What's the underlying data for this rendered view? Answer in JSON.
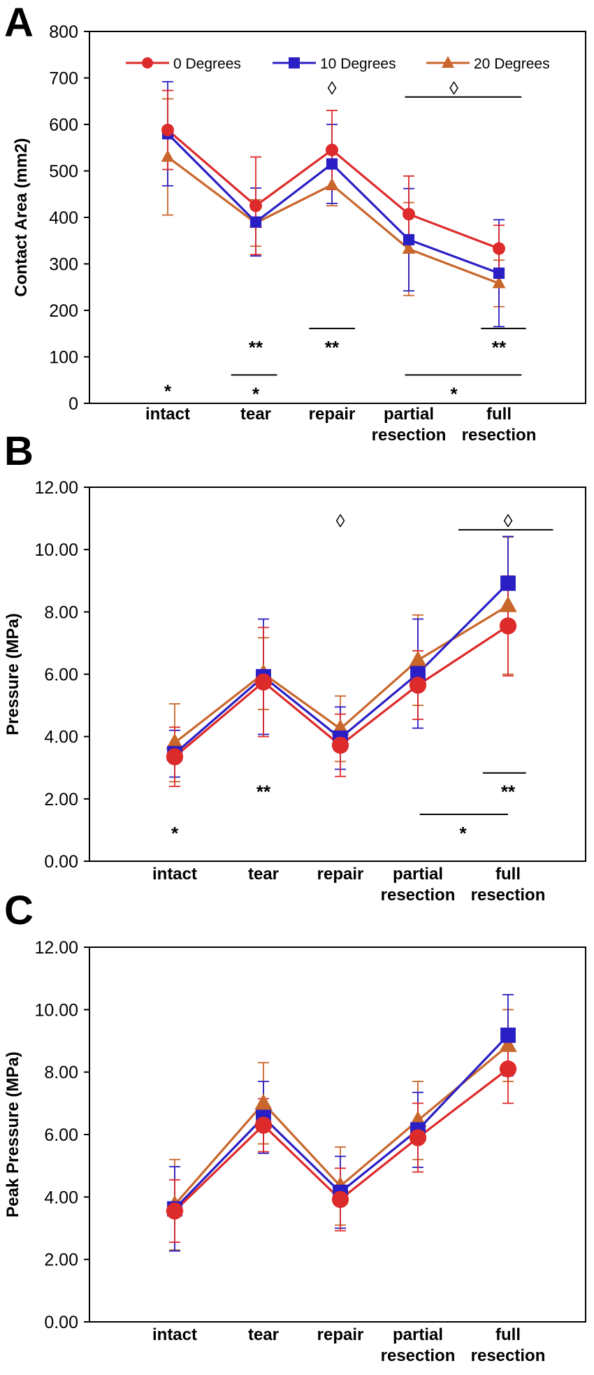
{
  "legend": {
    "items": [
      {
        "label": "0 Degrees",
        "color": "#dd2a2a",
        "marker": "circle"
      },
      {
        "label": "10 Degrees",
        "color": "#2a1fc4",
        "marker": "square"
      },
      {
        "label": "20 Degrees",
        "color": "#c9662b",
        "marker": "triangle"
      }
    ]
  },
  "chart_data": [
    {
      "panel": "A",
      "type": "line",
      "ylabel": "Contact Area (mm2)",
      "xlabel": "",
      "ylim": [
        0,
        800
      ],
      "yticks": [
        "0",
        "100",
        "200",
        "300",
        "400",
        "500",
        "600",
        "700",
        "800"
      ],
      "categories": [
        "intact",
        "tear",
        "repair",
        "partial resection",
        "full resection"
      ],
      "legend": "top",
      "grid": false,
      "series": [
        {
          "name": "0 Degrees",
          "values": [
            588,
            425,
            545,
            407,
            333
          ],
          "errors": [
            85,
            105,
            85,
            82,
            50
          ]
        },
        {
          "name": "10 Degrees",
          "values": [
            580,
            390,
            515,
            352,
            280
          ],
          "errors": [
            112,
            73,
            85,
            110,
            115
          ]
        },
        {
          "name": "20 Degrees",
          "values": [
            530,
            388,
            470,
            332,
            258
          ],
          "errors": [
            125,
            50,
            45,
            100,
            50
          ]
        }
      ],
      "annotations": [
        {
          "text": "*",
          "x": 0,
          "y": 28
        },
        {
          "text": "**",
          "x": 1,
          "y": 122
        },
        {
          "text": "*",
          "x": 1,
          "y": 22,
          "bar_from": 0.72,
          "bar_to": 1.28
        },
        {
          "text": "**",
          "x": 2,
          "y": 122,
          "bar_from": 1.7,
          "bar_to": 2.3
        },
        {
          "text": "◊",
          "x": 2,
          "y": 680
        },
        {
          "text": "◊",
          "x": 3.5,
          "y": 680,
          "bar_from": 2.95,
          "bar_to": 4.25
        },
        {
          "text": "**",
          "x": 4,
          "y": 122,
          "bar_from": 3.8,
          "bar_to": 4.3
        },
        {
          "text": "*",
          "x": 3.5,
          "y": 22,
          "bar_from": 2.95,
          "bar_to": 4.25
        }
      ]
    },
    {
      "panel": "B",
      "type": "line",
      "ylabel": "Pressure (MPa)",
      "xlabel": "",
      "ylim": [
        0,
        12
      ],
      "yticks": [
        "0.00",
        "2.00",
        "4.00",
        "6.00",
        "8.00",
        "10.00",
        "12.00"
      ],
      "categories": [
        "intact",
        "tear",
        "repair",
        "partial resection",
        "full resection"
      ],
      "grid": false,
      "series": [
        {
          "name": "0 Degrees",
          "values": [
            3.35,
            5.75,
            3.72,
            5.65,
            7.55
          ],
          "errors": [
            0.95,
            1.75,
            1.0,
            1.1,
            1.6
          ]
        },
        {
          "name": "10 Degrees",
          "values": [
            3.45,
            5.92,
            3.95,
            6.02,
            8.92
          ],
          "errors": [
            0.75,
            1.85,
            1.0,
            1.75,
            1.5
          ]
        },
        {
          "name": "20 Degrees",
          "values": [
            3.8,
            6.02,
            4.25,
            6.45,
            8.2
          ],
          "errors": [
            1.25,
            1.15,
            1.05,
            1.45,
            2.2
          ]
        }
      ],
      "annotations": [
        {
          "text": "*",
          "x": 0,
          "y": 0.92
        },
        {
          "text": "**",
          "x": 1,
          "y": 2.25
        },
        {
          "text": "◊",
          "x": 2,
          "y": 10.95
        },
        {
          "text": "◊",
          "x": 4,
          "y": 10.95,
          "bar_from": 3.45,
          "bar_to": 4.5
        },
        {
          "text": "**",
          "x": 4,
          "y": 2.25,
          "bar_from": 3.72,
          "bar_to": 4.2
        },
        {
          "text": "*",
          "x": 3.5,
          "y": 0.92,
          "bar_from": 3.02,
          "bar_to": 4.0
        }
      ]
    },
    {
      "panel": "C",
      "type": "line",
      "ylabel": "Peak Pressure (MPa)",
      "xlabel": "",
      "ylim": [
        0,
        12
      ],
      "yticks": [
        "0.00",
        "2.00",
        "4.00",
        "6.00",
        "8.00",
        "10.00",
        "12.00"
      ],
      "categories": [
        "intact",
        "tear",
        "repair",
        "partial resection",
        "full resection"
      ],
      "grid": false,
      "series": [
        {
          "name": "0 Degrees",
          "values": [
            3.55,
            6.3,
            3.92,
            5.9,
            8.1
          ],
          "errors": [
            1.0,
            0.85,
            1.0,
            1.1,
            1.1
          ]
        },
        {
          "name": "10 Degrees",
          "values": [
            3.62,
            6.55,
            4.15,
            6.15,
            9.18
          ],
          "errors": [
            1.35,
            1.15,
            1.15,
            1.2,
            1.3
          ]
        },
        {
          "name": "20 Degrees",
          "values": [
            3.75,
            7.0,
            4.35,
            6.45,
            8.85
          ],
          "errors": [
            1.45,
            1.3,
            1.25,
            1.25,
            1.15
          ]
        }
      ],
      "annotations": []
    }
  ]
}
